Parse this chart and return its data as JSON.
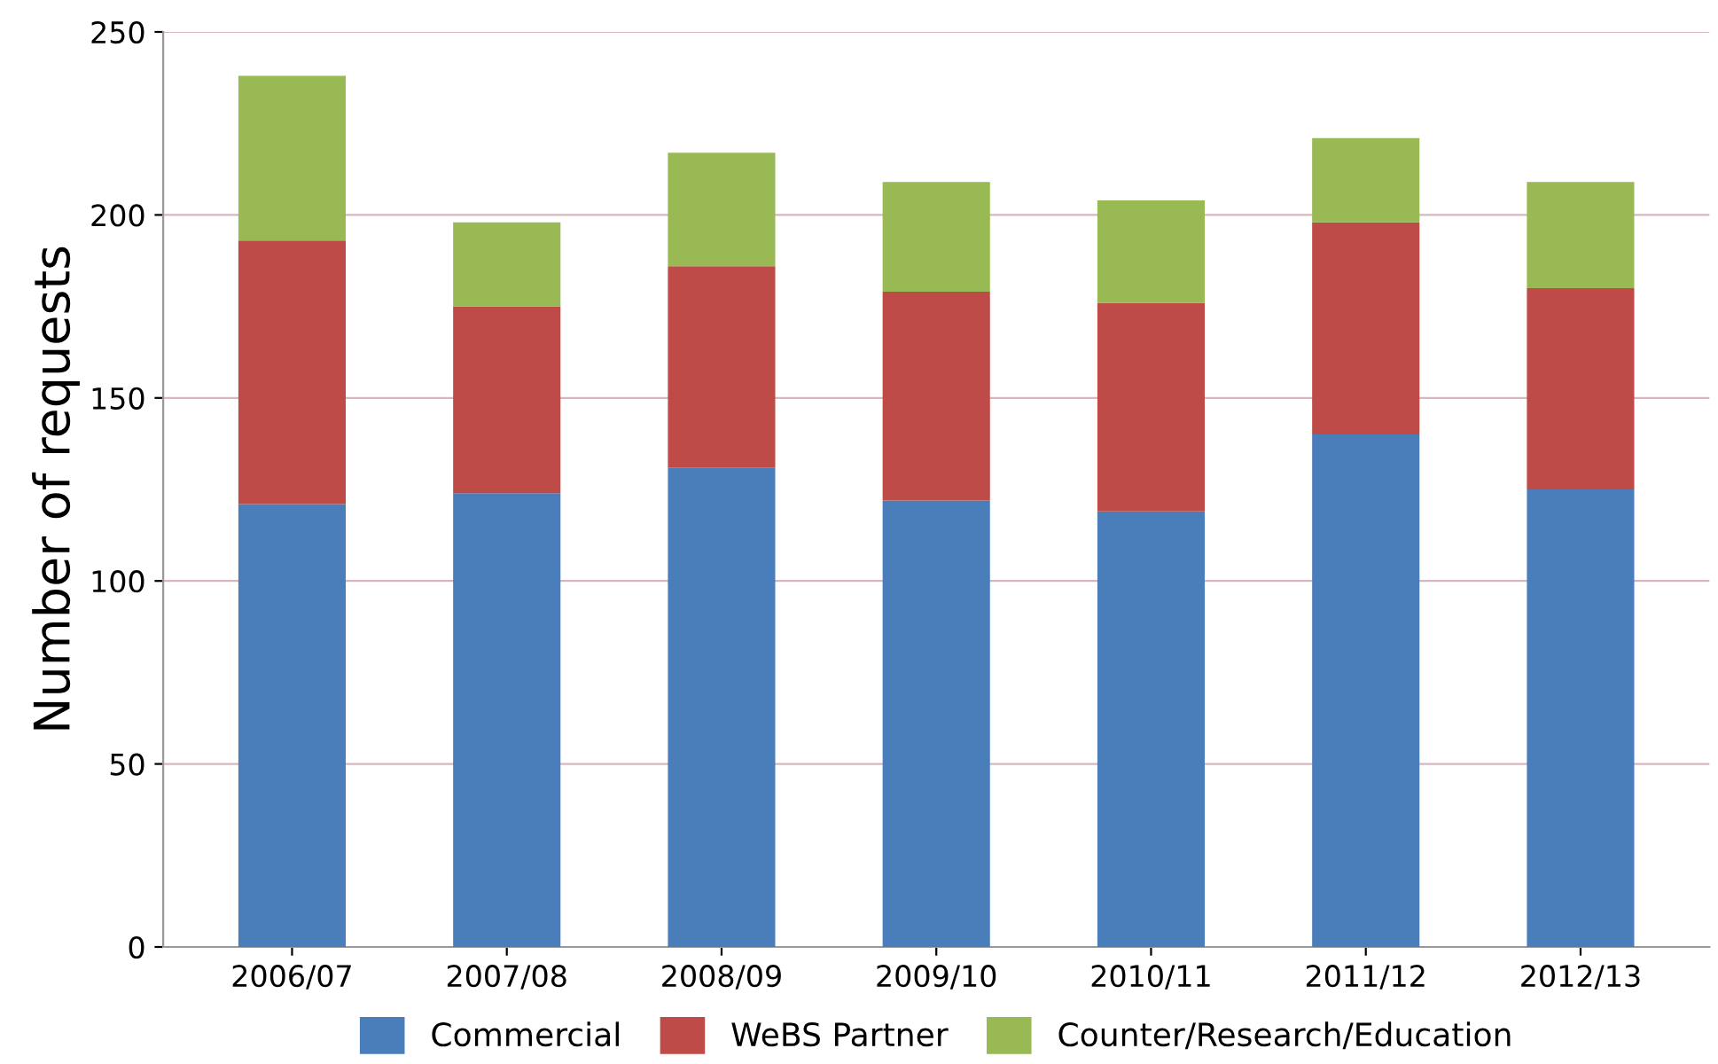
{
  "chart_data": {
    "type": "bar",
    "stacked": true,
    "ylabel": "Number of requests",
    "categories": [
      "2006/07",
      "2007/08",
      "2008/09",
      "2009/10",
      "2010/11",
      "2011/12",
      "2012/13"
    ],
    "series": [
      {
        "name": "Commercial",
        "color": "#4a7ebb",
        "values": [
          121,
          124,
          131,
          122,
          119,
          140,
          125
        ]
      },
      {
        "name": "WeBS Partner",
        "color": "#be4b48",
        "values": [
          72,
          51,
          55,
          57,
          57,
          58,
          55
        ]
      },
      {
        "name": "Counter/Research/Education",
        "color": "#98b954",
        "values": [
          45,
          23,
          31,
          30,
          28,
          23,
          29
        ]
      }
    ],
    "ylim": [
      0,
      250
    ],
    "yticks": [
      0,
      50,
      100,
      150,
      200,
      250
    ],
    "grid": "y",
    "legend": "bottom"
  }
}
